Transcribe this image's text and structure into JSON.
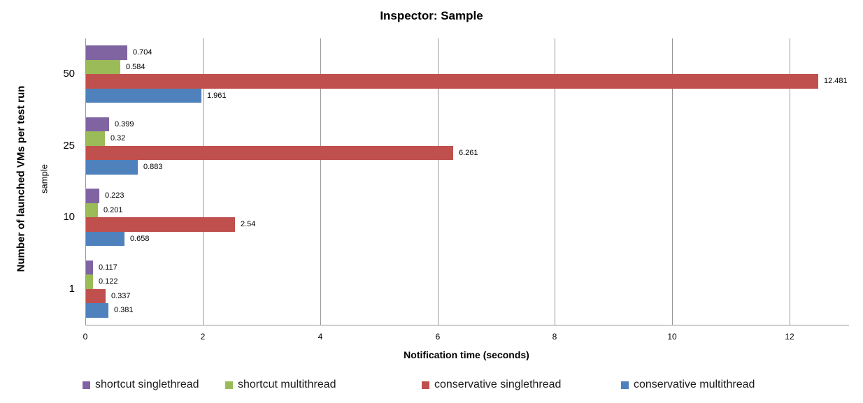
{
  "chart_data": {
    "type": "bar",
    "orientation": "horizontal",
    "title": "Inspector: Sample",
    "xlabel": "Notification time (seconds)",
    "ylabel_primary": "Number of launched VMs per test run",
    "ylabel_secondary": "sample",
    "categories": [
      "50",
      "25",
      "10",
      "1"
    ],
    "series": [
      {
        "name": "shortcut singlethread",
        "color": "#8064A2",
        "values": [
          0.704,
          0.399,
          0.223,
          0.117
        ]
      },
      {
        "name": "shortcut multithread",
        "color": "#9BBB59",
        "values": [
          0.584,
          0.32,
          0.201,
          0.122
        ]
      },
      {
        "name": "conservative singlethread",
        "color": "#C0504D",
        "values": [
          12.481,
          6.261,
          2.54,
          0.337
        ]
      },
      {
        "name": "conservative multithread",
        "color": "#4F81BD",
        "values": [
          1.961,
          0.883,
          0.658,
          0.381
        ]
      }
    ],
    "x_ticks": [
      0,
      2,
      4,
      6,
      8,
      10,
      12
    ],
    "xlim": [
      0,
      13
    ],
    "gridlines": "vertical",
    "gridline_color": "#969696",
    "value_labels": true,
    "legend_position": "bottom"
  }
}
